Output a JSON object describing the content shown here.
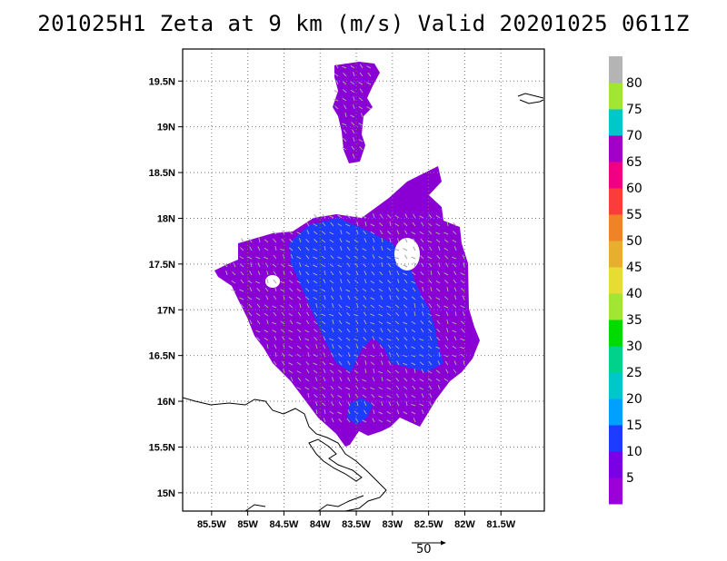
{
  "title": "201025H1 Zeta at 9 km (m/s) Valid 20201025 0611Z",
  "map": {
    "lon_ticks": [
      "85.5W",
      "85W",
      "84.5W",
      "84W",
      "83.5W",
      "83W",
      "82.5W",
      "82W",
      "81.5W"
    ],
    "lon_values": [
      -85.5,
      -85,
      -84.5,
      -84,
      -83.5,
      -83,
      -82.5,
      -82,
      -81.5
    ],
    "lat_ticks": [
      "19.5N",
      "19N",
      "18.5N",
      "18N",
      "17.5N",
      "17N",
      "16.5N",
      "16N",
      "15.5N",
      "15N"
    ],
    "lat_values": [
      19.5,
      19,
      18.5,
      18,
      17.5,
      17,
      16.5,
      16,
      15.5,
      15
    ],
    "lon_range": [
      -85.9,
      -80.9
    ],
    "lat_range": [
      14.8,
      19.85
    ],
    "grid": "dotted",
    "field_colors": {
      "main": "#8a00d4",
      "core": "#1e3cff",
      "vectors": "#a8a8a8"
    }
  },
  "colorbar": {
    "levels": [
      "5",
      "10",
      "15",
      "20",
      "25",
      "30",
      "35",
      "40",
      "45",
      "50",
      "55",
      "60",
      "65",
      "70",
      "75",
      "80"
    ],
    "colors": [
      "#9b00d8",
      "#7a00e6",
      "#1e3cff",
      "#00a0ff",
      "#00c8c8",
      "#00d28c",
      "#00dc00",
      "#a0e632",
      "#e6dc32",
      "#e6af2d",
      "#f08228",
      "#fa3c3c",
      "#f00082",
      "#a000c8",
      "#00c8c8",
      "#a0e632",
      "#b4b4b4"
    ]
  },
  "scale_vector": {
    "label": "50"
  }
}
